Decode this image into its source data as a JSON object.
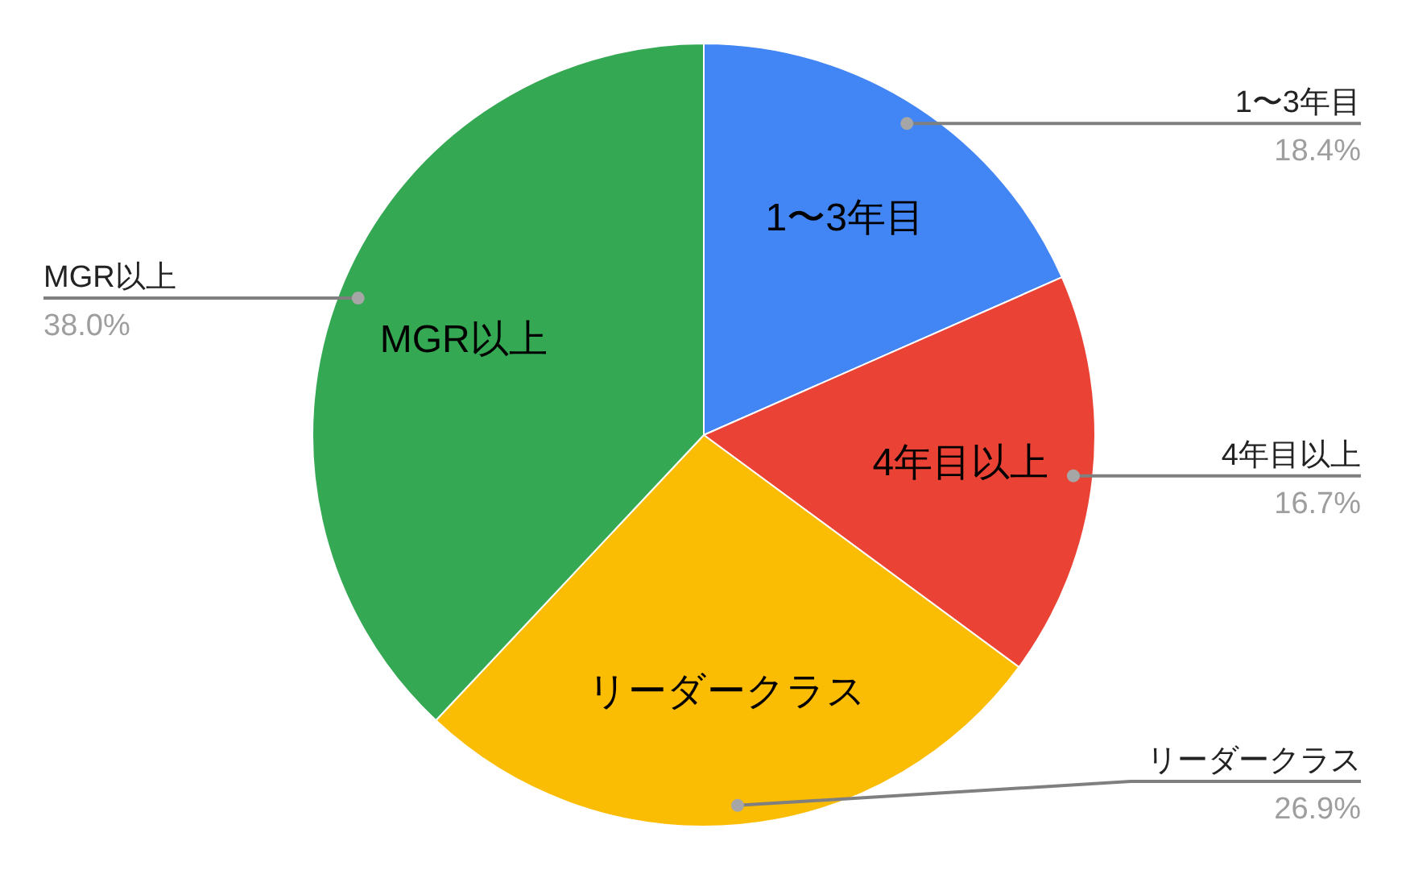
{
  "chart_data": {
    "type": "pie",
    "categories": [
      "1〜3年目",
      "4年目以上",
      "リーダークラス",
      "MGR以上"
    ],
    "values": [
      18.4,
      16.7,
      26.9,
      38.0
    ],
    "colors": [
      "#4285f4",
      "#ea4335",
      "#fbbc04",
      "#34a853"
    ],
    "value_labels": [
      "18.4%",
      "16.7%",
      "26.9%",
      "38.0%"
    ]
  }
}
